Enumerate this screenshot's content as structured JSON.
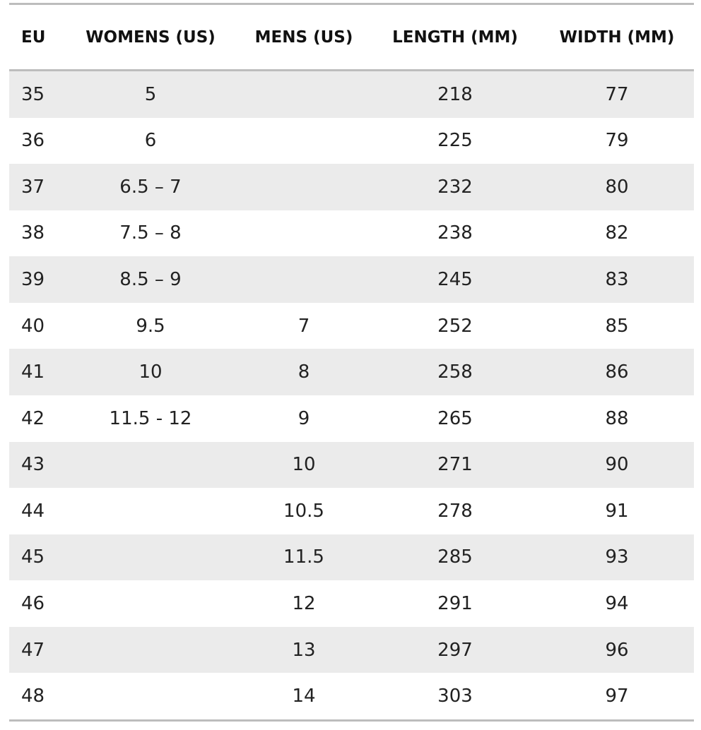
{
  "table": {
    "header": [
      "EU",
      "WOMENS (US)",
      "MENS (US)",
      "LENGTH (MM)",
      "WIDTH (MM)"
    ],
    "rows": [
      [
        "35",
        "5",
        null,
        "218",
        "77"
      ],
      [
        "36",
        "6",
        null,
        "225",
        "79"
      ],
      [
        "37",
        "6.5 – 7",
        null,
        "232",
        "80"
      ],
      [
        "38",
        "7.5 – 8",
        null,
        "238",
        "82"
      ],
      [
        "39",
        "8.5 – 9",
        null,
        "245",
        "83"
      ],
      [
        "40",
        "9.5",
        "7",
        "252",
        "85"
      ],
      [
        "41",
        "10",
        "8",
        "258",
        "86"
      ],
      [
        "42",
        "11.5 - 12",
        "9",
        "265",
        "88"
      ],
      [
        "43",
        null,
        "10",
        "271",
        "90"
      ],
      [
        "44",
        null,
        "10.5",
        "278",
        "91"
      ],
      [
        "45",
        null,
        "11.5",
        "285",
        "93"
      ],
      [
        "46",
        null,
        "12",
        "291",
        "94"
      ],
      [
        "47",
        null,
        "13",
        "297",
        "96"
      ],
      [
        "48",
        null,
        "14",
        "303",
        "97"
      ]
    ]
  }
}
